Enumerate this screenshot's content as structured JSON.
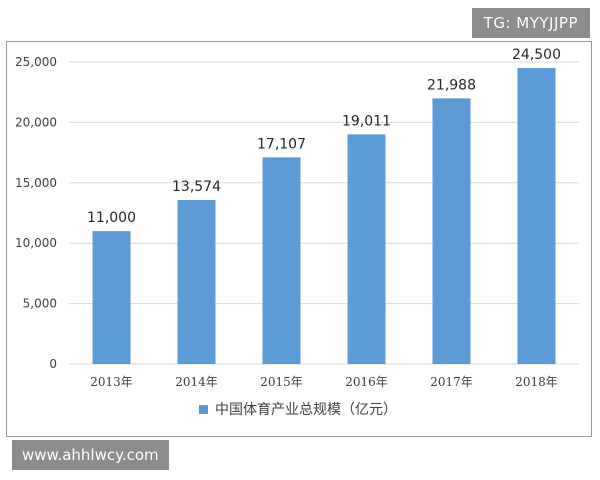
{
  "watermarks": {
    "top_right": "TG: MYYJJPP",
    "bottom_left": "www.ahhlwcy.com"
  },
  "colors": {
    "bar": "#5b9bd5",
    "grid": "#d9d9d9",
    "axis_text": "#404040"
  },
  "chart_data": {
    "type": "bar",
    "categories": [
      "2013年",
      "2014年",
      "2015年",
      "2016年",
      "2017年",
      "2018年"
    ],
    "series": [
      {
        "name": "中国体育产业总规模（亿元）",
        "values": [
          11000,
          13574,
          17107,
          19011,
          21988,
          24500
        ],
        "labels": [
          "11,000",
          "13,574",
          "17,107",
          "19,011",
          "21,988",
          "24,500"
        ]
      }
    ],
    "yticks": [
      0,
      5000,
      10000,
      15000,
      20000,
      25000
    ],
    "ytick_labels": [
      "0",
      "5,000",
      "10,000",
      "15,000",
      "20,000",
      "25,000"
    ],
    "ylim": [
      0,
      25000
    ],
    "grid": true,
    "legend_position": "bottom-center"
  }
}
